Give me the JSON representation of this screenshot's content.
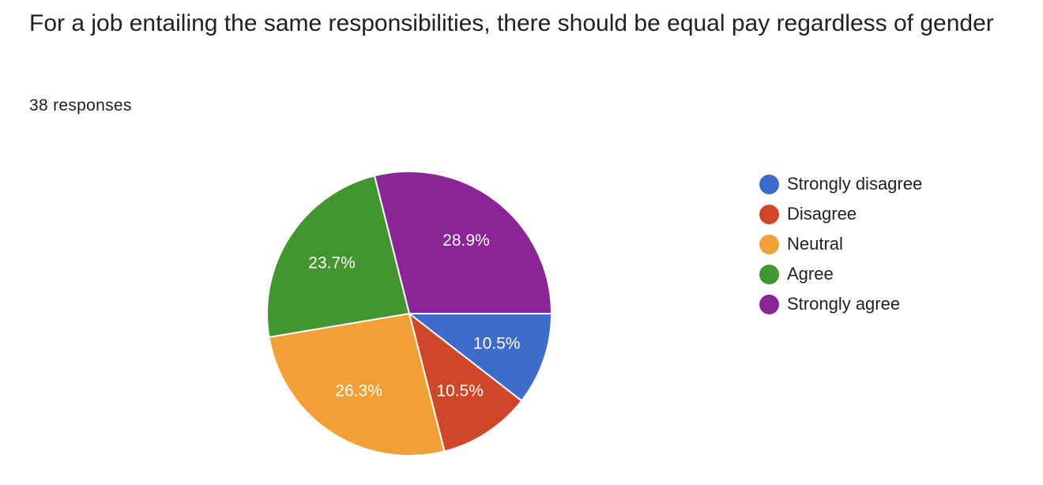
{
  "title": "For a job entailing the same responsibilities, there should be equal pay regardless of gender",
  "subtitle": "38 responses",
  "chart_data": {
    "type": "pie",
    "title": "For a job entailing the same responsibilities, there should be equal pay regardless of gender",
    "total_responses": 38,
    "legend_position": "right",
    "slices": [
      {
        "label": "Strongly disagree",
        "value": 10.5,
        "display": "10.5%",
        "color": "#3e6ccc"
      },
      {
        "label": "Disagree",
        "value": 10.5,
        "display": "10.5%",
        "color": "#cf4729"
      },
      {
        "label": "Neutral",
        "value": 26.3,
        "display": "26.3%",
        "color": "#f29f37"
      },
      {
        "label": "Agree",
        "value": 23.7,
        "display": "23.7%",
        "color": "#42952f"
      },
      {
        "label": "Strongly agree",
        "value": 28.9,
        "display": "28.9%",
        "color": "#8a2596"
      }
    ]
  }
}
